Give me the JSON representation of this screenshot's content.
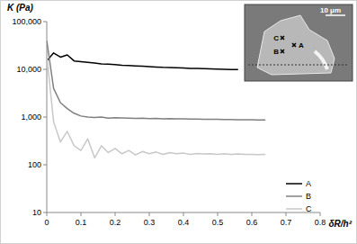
{
  "chart_data": {
    "type": "line",
    "y_label": "K (Pa)",
    "x_label": "δR/h²",
    "annotations": [
      "10 μm",
      "C",
      "B",
      "A"
    ],
    "log": "y",
    "grid": false,
    "legend": "right",
    "xlim": [
      0,
      0.8
    ],
    "xticks": [
      0,
      0.1,
      0.2,
      0.3,
      0.4,
      0.5,
      0.6,
      0.7,
      0.8
    ],
    "ylim": [
      10,
      100000
    ],
    "yticks": [
      10,
      100,
      {
        "value": 1000,
        "label": "1,000"
      },
      {
        "value": 10000,
        "label": "10,000"
      },
      {
        "value": 100000,
        "label": "100,000"
      }
    ],
    "x": [
      0,
      0.02,
      0.04,
      0.06,
      0.08,
      0.1,
      0.12,
      0.14,
      0.16,
      0.18,
      0.2,
      0.22,
      0.24,
      0.26,
      0.28,
      0.3,
      0.32,
      0.34,
      0.36,
      0.38,
      0.4,
      0.42,
      0.44,
      0.46,
      0.48,
      0.5,
      0.52,
      0.54,
      0.56,
      0.58,
      0.6,
      0.62,
      0.64
    ],
    "series": [
      {
        "name": "A",
        "color": "#000000",
        "values": [
          15000,
          22000,
          18000,
          20000,
          15000,
          14500,
          14000,
          13500,
          13000,
          12800,
          12500,
          12200,
          12000,
          11800,
          11600,
          11400,
          11200,
          11000,
          10900,
          10800,
          10700,
          10500,
          10400,
          10300,
          10200,
          10100,
          10000,
          9900,
          9900,
          null,
          null,
          null,
          null
        ]
      },
      {
        "name": "B",
        "color": "#808080",
        "values": [
          40000,
          4000,
          2000,
          1500,
          1200,
          1050,
          1000,
          980,
          1000,
          950,
          970,
          960,
          950,
          940,
          950,
          930,
          940,
          920,
          930,
          920,
          920,
          910,
          910,
          900,
          900,
          900,
          890,
          890,
          880,
          880,
          880,
          870,
          870
        ]
      },
      {
        "name": "C",
        "color": "#c8c8c8",
        "values": [
          20000,
          800,
          300,
          500,
          250,
          200,
          350,
          140,
          250,
          180,
          220,
          170,
          200,
          160,
          190,
          170,
          185,
          165,
          180,
          170,
          175,
          165,
          172,
          168,
          170,
          165,
          170,
          165,
          168,
          165,
          165,
          163,
          165
        ]
      }
    ]
  }
}
